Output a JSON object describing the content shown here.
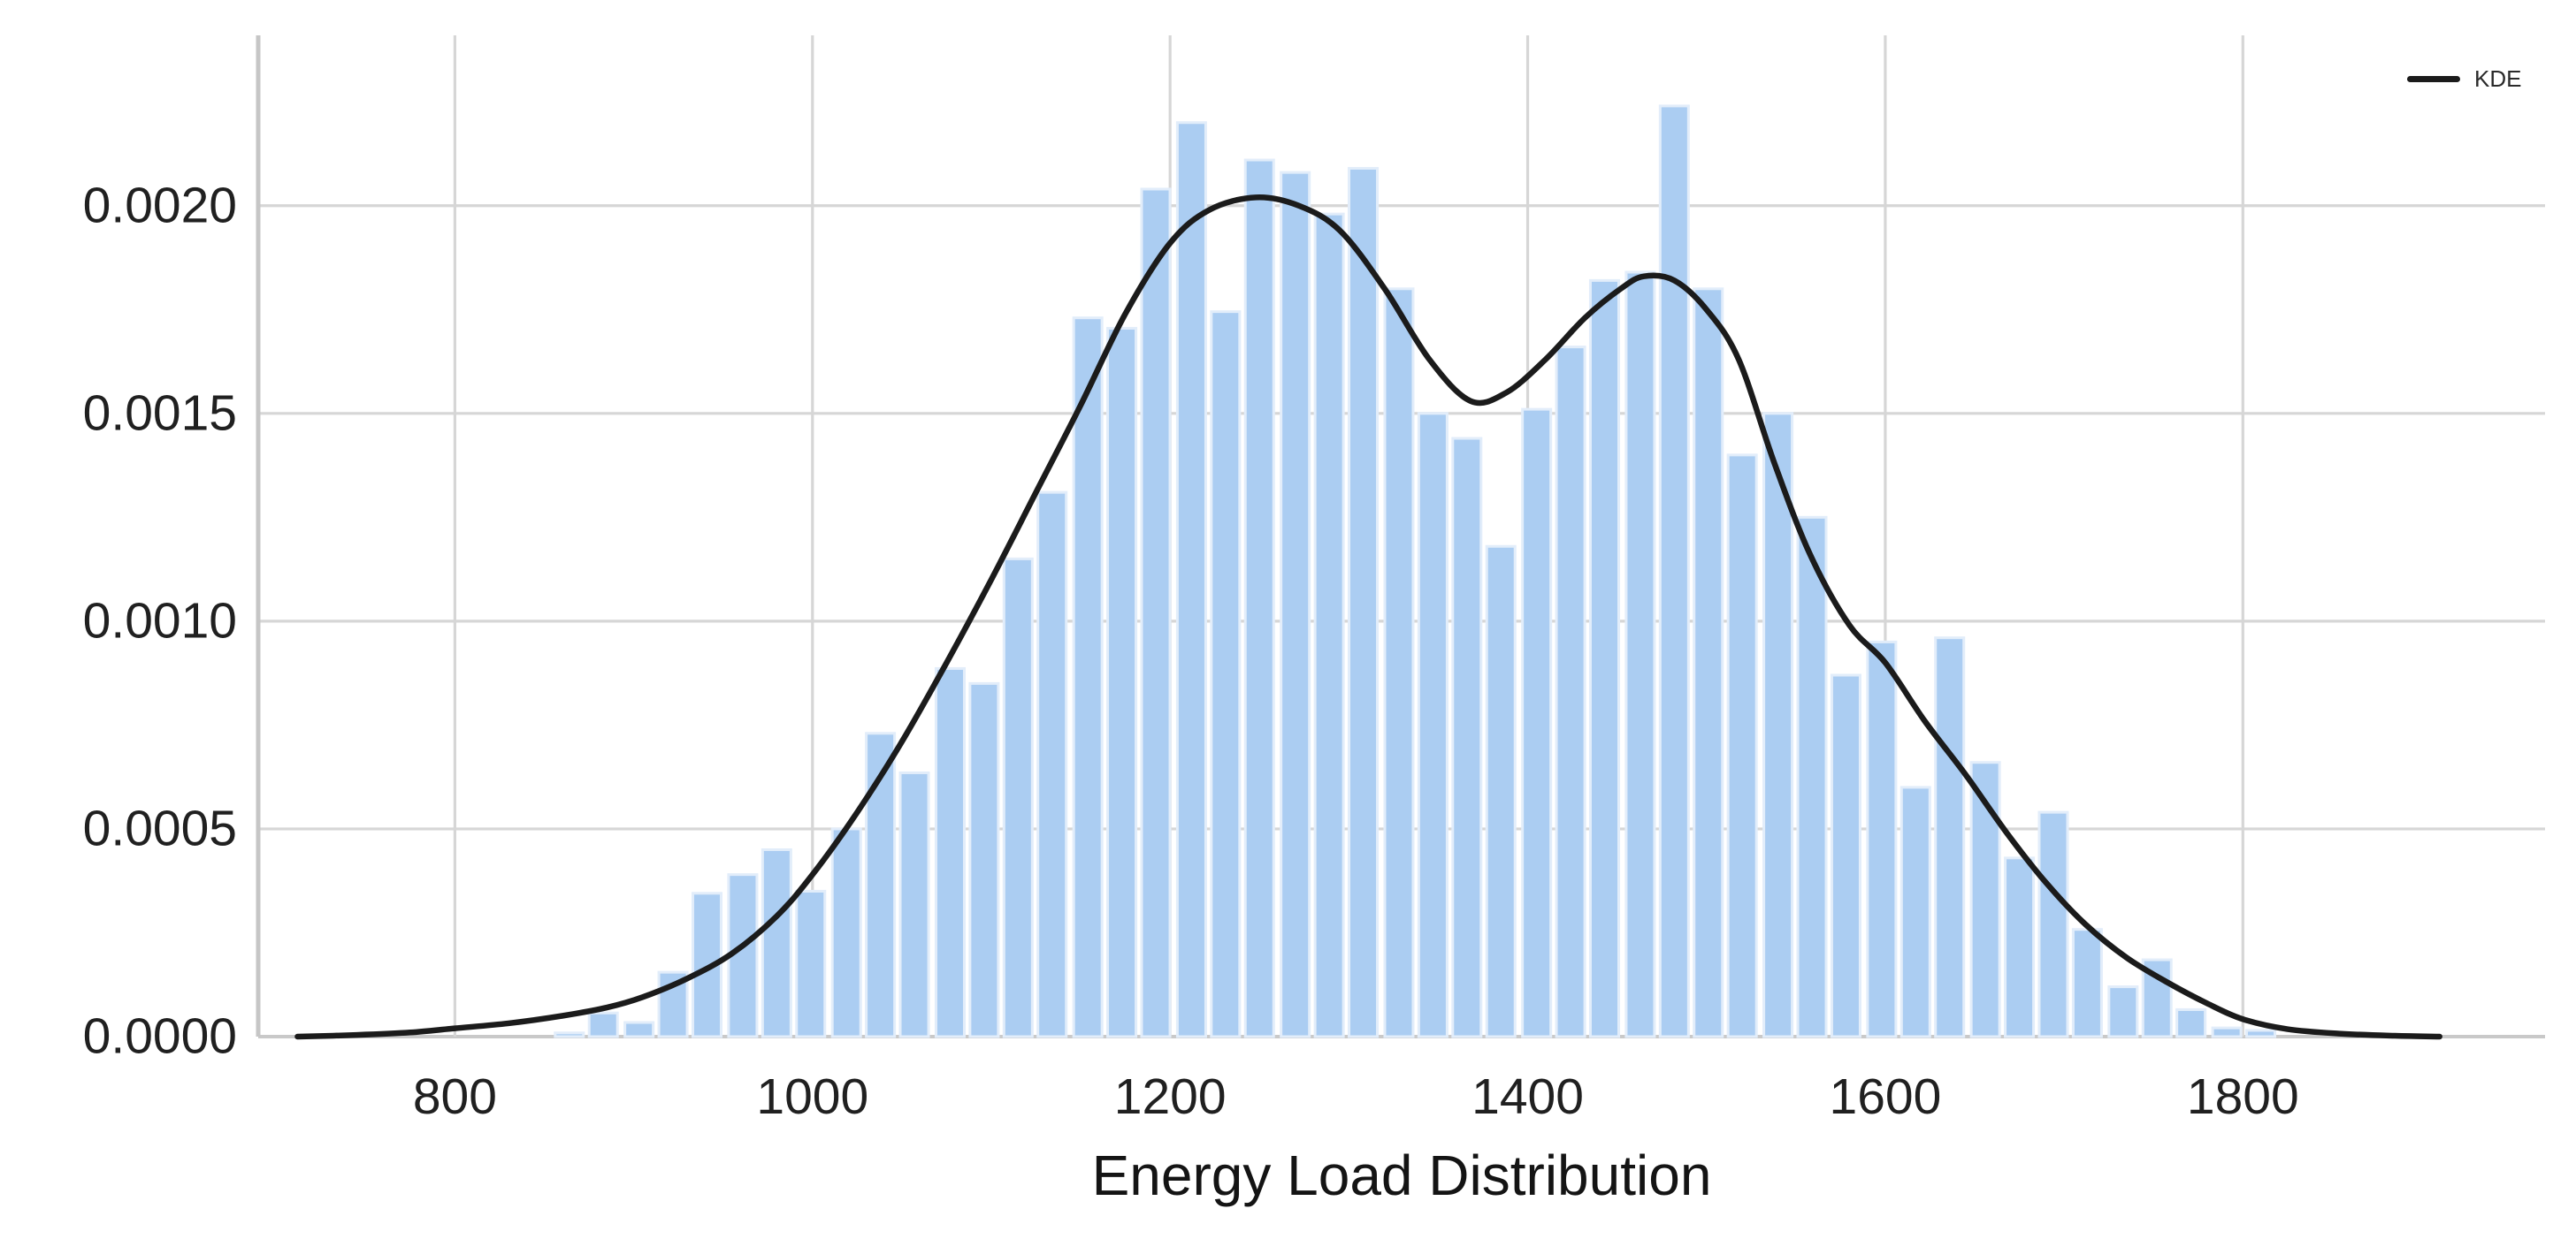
{
  "figure": {
    "xlabel": "Energy Load Distribution",
    "legend": {
      "label": "KDE"
    }
  },
  "colors": {
    "background": "#ffffff",
    "bar_fill": "#abcdf2",
    "bar_edge": "#e2edfa",
    "kde_line": "#1b1b1b",
    "grid": "#d6d6d6",
    "spine": "#c6c6c6",
    "baseline": "#c9c9c9",
    "tick_text": "#202020",
    "label_text": "#141414"
  },
  "chart_data": {
    "type": "bar",
    "subtype": "histogram-with-kde",
    "title": "",
    "xlabel": "Energy Load Distribution",
    "ylabel": "",
    "grid": true,
    "legend_position": "upper right",
    "legend_entries": [
      "KDE"
    ],
    "xlim": [
      690,
      1969
    ],
    "ylim": [
      0,
      0.00241
    ],
    "x_ticks": [
      800,
      1000,
      1200,
      1400,
      1600,
      1800
    ],
    "y_tick_labels": [
      "0.0000",
      "0.0005",
      "0.0010",
      "0.0015",
      "0.0020"
    ],
    "y_tick_values": [
      0,
      0.0005,
      0.001,
      0.0015,
      0.002
    ],
    "bin_width": 19.3,
    "bin_centers": [
      864,
      883,
      903,
      922,
      941,
      961,
      980,
      999,
      1019,
      1038,
      1057,
      1077,
      1096,
      1115,
      1134,
      1154,
      1173,
      1192,
      1212,
      1231,
      1250,
      1270,
      1289,
      1308,
      1328,
      1347,
      1366,
      1385,
      1405,
      1424,
      1443,
      1463,
      1482,
      1501,
      1520,
      1540,
      1559,
      1578,
      1598,
      1617,
      1636,
      1656,
      1675,
      1694,
      1713,
      1733,
      1752,
      1771,
      1791,
      1810
    ],
    "values": [
      9e-06,
      5.7e-05,
      3.4e-05,
      0.000155,
      0.000345,
      0.00039,
      0.00045,
      0.00035,
      0.0005,
      0.00073,
      0.000635,
      0.000886,
      0.00085,
      0.00115,
      0.00131,
      0.00173,
      0.001705,
      0.00204,
      0.0022,
      0.001745,
      0.00211,
      0.00208,
      0.00198,
      0.00209,
      0.0018,
      0.0015,
      0.00144,
      0.00118,
      0.00151,
      0.00166,
      0.00182,
      0.00184,
      0.00224,
      0.0018,
      0.0014,
      0.0015,
      0.00125,
      0.00087,
      0.00095,
      0.0006,
      0.00096,
      0.00066,
      0.00043,
      0.00054,
      0.000258,
      0.00012,
      0.000185,
      6.5e-05,
      2.1e-05,
      1.5e-05
    ],
    "series": [
      {
        "name": "KDE",
        "type": "line",
        "points": [
          [
            712,
            0
          ],
          [
            745,
            4e-06
          ],
          [
            775,
            1e-05
          ],
          [
            800,
            2e-05
          ],
          [
            830,
            3.2e-05
          ],
          [
            860,
            5e-05
          ],
          [
            885,
            7e-05
          ],
          [
            905,
            9.5e-05
          ],
          [
            930,
            0.00014
          ],
          [
            955,
            0.0002
          ],
          [
            980,
            0.00029
          ],
          [
            1000,
            0.00039
          ],
          [
            1025,
            0.00054
          ],
          [
            1050,
            0.00071
          ],
          [
            1075,
            0.0009
          ],
          [
            1100,
            0.0011
          ],
          [
            1125,
            0.00131
          ],
          [
            1150,
            0.00152
          ],
          [
            1175,
            0.00174
          ],
          [
            1200,
            0.00191
          ],
          [
            1222,
            0.00199
          ],
          [
            1248,
            0.00202
          ],
          [
            1272,
            0.002
          ],
          [
            1295,
            0.00194
          ],
          [
            1320,
            0.0018
          ],
          [
            1345,
            0.00163
          ],
          [
            1368,
            0.00153
          ],
          [
            1388,
            0.00155
          ],
          [
            1410,
            0.00163
          ],
          [
            1432,
            0.00173
          ],
          [
            1452,
            0.0018
          ],
          [
            1465,
            0.00183
          ],
          [
            1482,
            0.00182
          ],
          [
            1500,
            0.00175
          ],
          [
            1518,
            0.00163
          ],
          [
            1538,
            0.00138
          ],
          [
            1558,
            0.00116
          ],
          [
            1580,
            0.00099
          ],
          [
            1600,
            0.0009
          ],
          [
            1622,
            0.00076
          ],
          [
            1645,
            0.00063
          ],
          [
            1668,
            0.00049
          ],
          [
            1690,
            0.00037
          ],
          [
            1712,
            0.00027
          ],
          [
            1735,
            0.00019
          ],
          [
            1758,
            0.00013
          ],
          [
            1780,
            8e-05
          ],
          [
            1800,
            4.2e-05
          ],
          [
            1825,
            1.8e-05
          ],
          [
            1855,
            7e-06
          ],
          [
            1885,
            2e-06
          ],
          [
            1910,
            0
          ]
        ]
      }
    ]
  }
}
